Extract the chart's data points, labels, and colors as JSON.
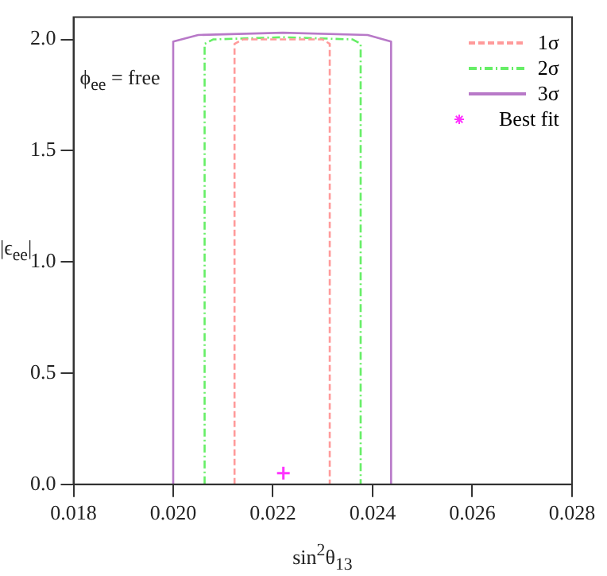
{
  "chart_data": {
    "type": "line",
    "xlabel": "sin$^{2}$θ$_{13}$",
    "ylabel": "|ϵ$_{ee}$|",
    "annotations": [
      "ϕ$_{ee}$ = free"
    ],
    "xlim": [
      0.018,
      0.028
    ],
    "xticks": [
      {
        "value": 0.018,
        "label": "0.018"
      },
      {
        "value": 0.02,
        "label": "0.020"
      },
      {
        "value": 0.022,
        "label": "0.022"
      },
      {
        "value": 0.024,
        "label": "0.024"
      },
      {
        "value": 0.026,
        "label": "0.026"
      },
      {
        "value": 0.028,
        "label": "0.028"
      }
    ],
    "ylim": [
      0,
      2.1
    ],
    "yticks": [
      {
        "value": 0,
        "label": "0.0"
      },
      {
        "value": 0.5,
        "label": "0.5"
      },
      {
        "value": 1,
        "label": "1.0"
      },
      {
        "value": 1.5,
        "label": "1.5"
      },
      {
        "value": 2,
        "label": "2.0"
      }
    ],
    "grid": false,
    "legend": "top right",
    "marker": "none",
    "series": [
      {
        "name": "1σ",
        "type": "line",
        "color": "#ff9a9a",
        "line_style": "dashed",
        "x": [
          0.02123,
          0.02123,
          0.0214,
          0.0222,
          0.023,
          0.02314,
          0.02314
        ],
        "values": [
          0,
          1.98,
          2.0,
          2.0,
          2.0,
          1.98,
          0
        ]
      },
      {
        "name": "2σ",
        "type": "line",
        "color": "#66ee66",
        "line_style": "dotted",
        "x": [
          0.02063,
          0.02063,
          0.0208,
          0.0222,
          0.0236,
          0.02376,
          0.02376
        ],
        "values": [
          0,
          1.98,
          2.0,
          2.01,
          2.0,
          1.98,
          0
        ]
      },
      {
        "name": "3σ",
        "type": "line",
        "color": "#b879c8",
        "line_style": "solid",
        "x": [
          0.02,
          0.02,
          0.0205,
          0.0222,
          0.0239,
          0.02437,
          0.02437
        ],
        "values": [
          0,
          1.99,
          2.02,
          2.03,
          2.02,
          1.99,
          0
        ]
      },
      {
        "name": "Best fit",
        "type": "scatter",
        "color": "#ff33ff",
        "marker": "cross",
        "x": [
          0.02221
        ],
        "values": [
          0.05
        ]
      }
    ]
  }
}
